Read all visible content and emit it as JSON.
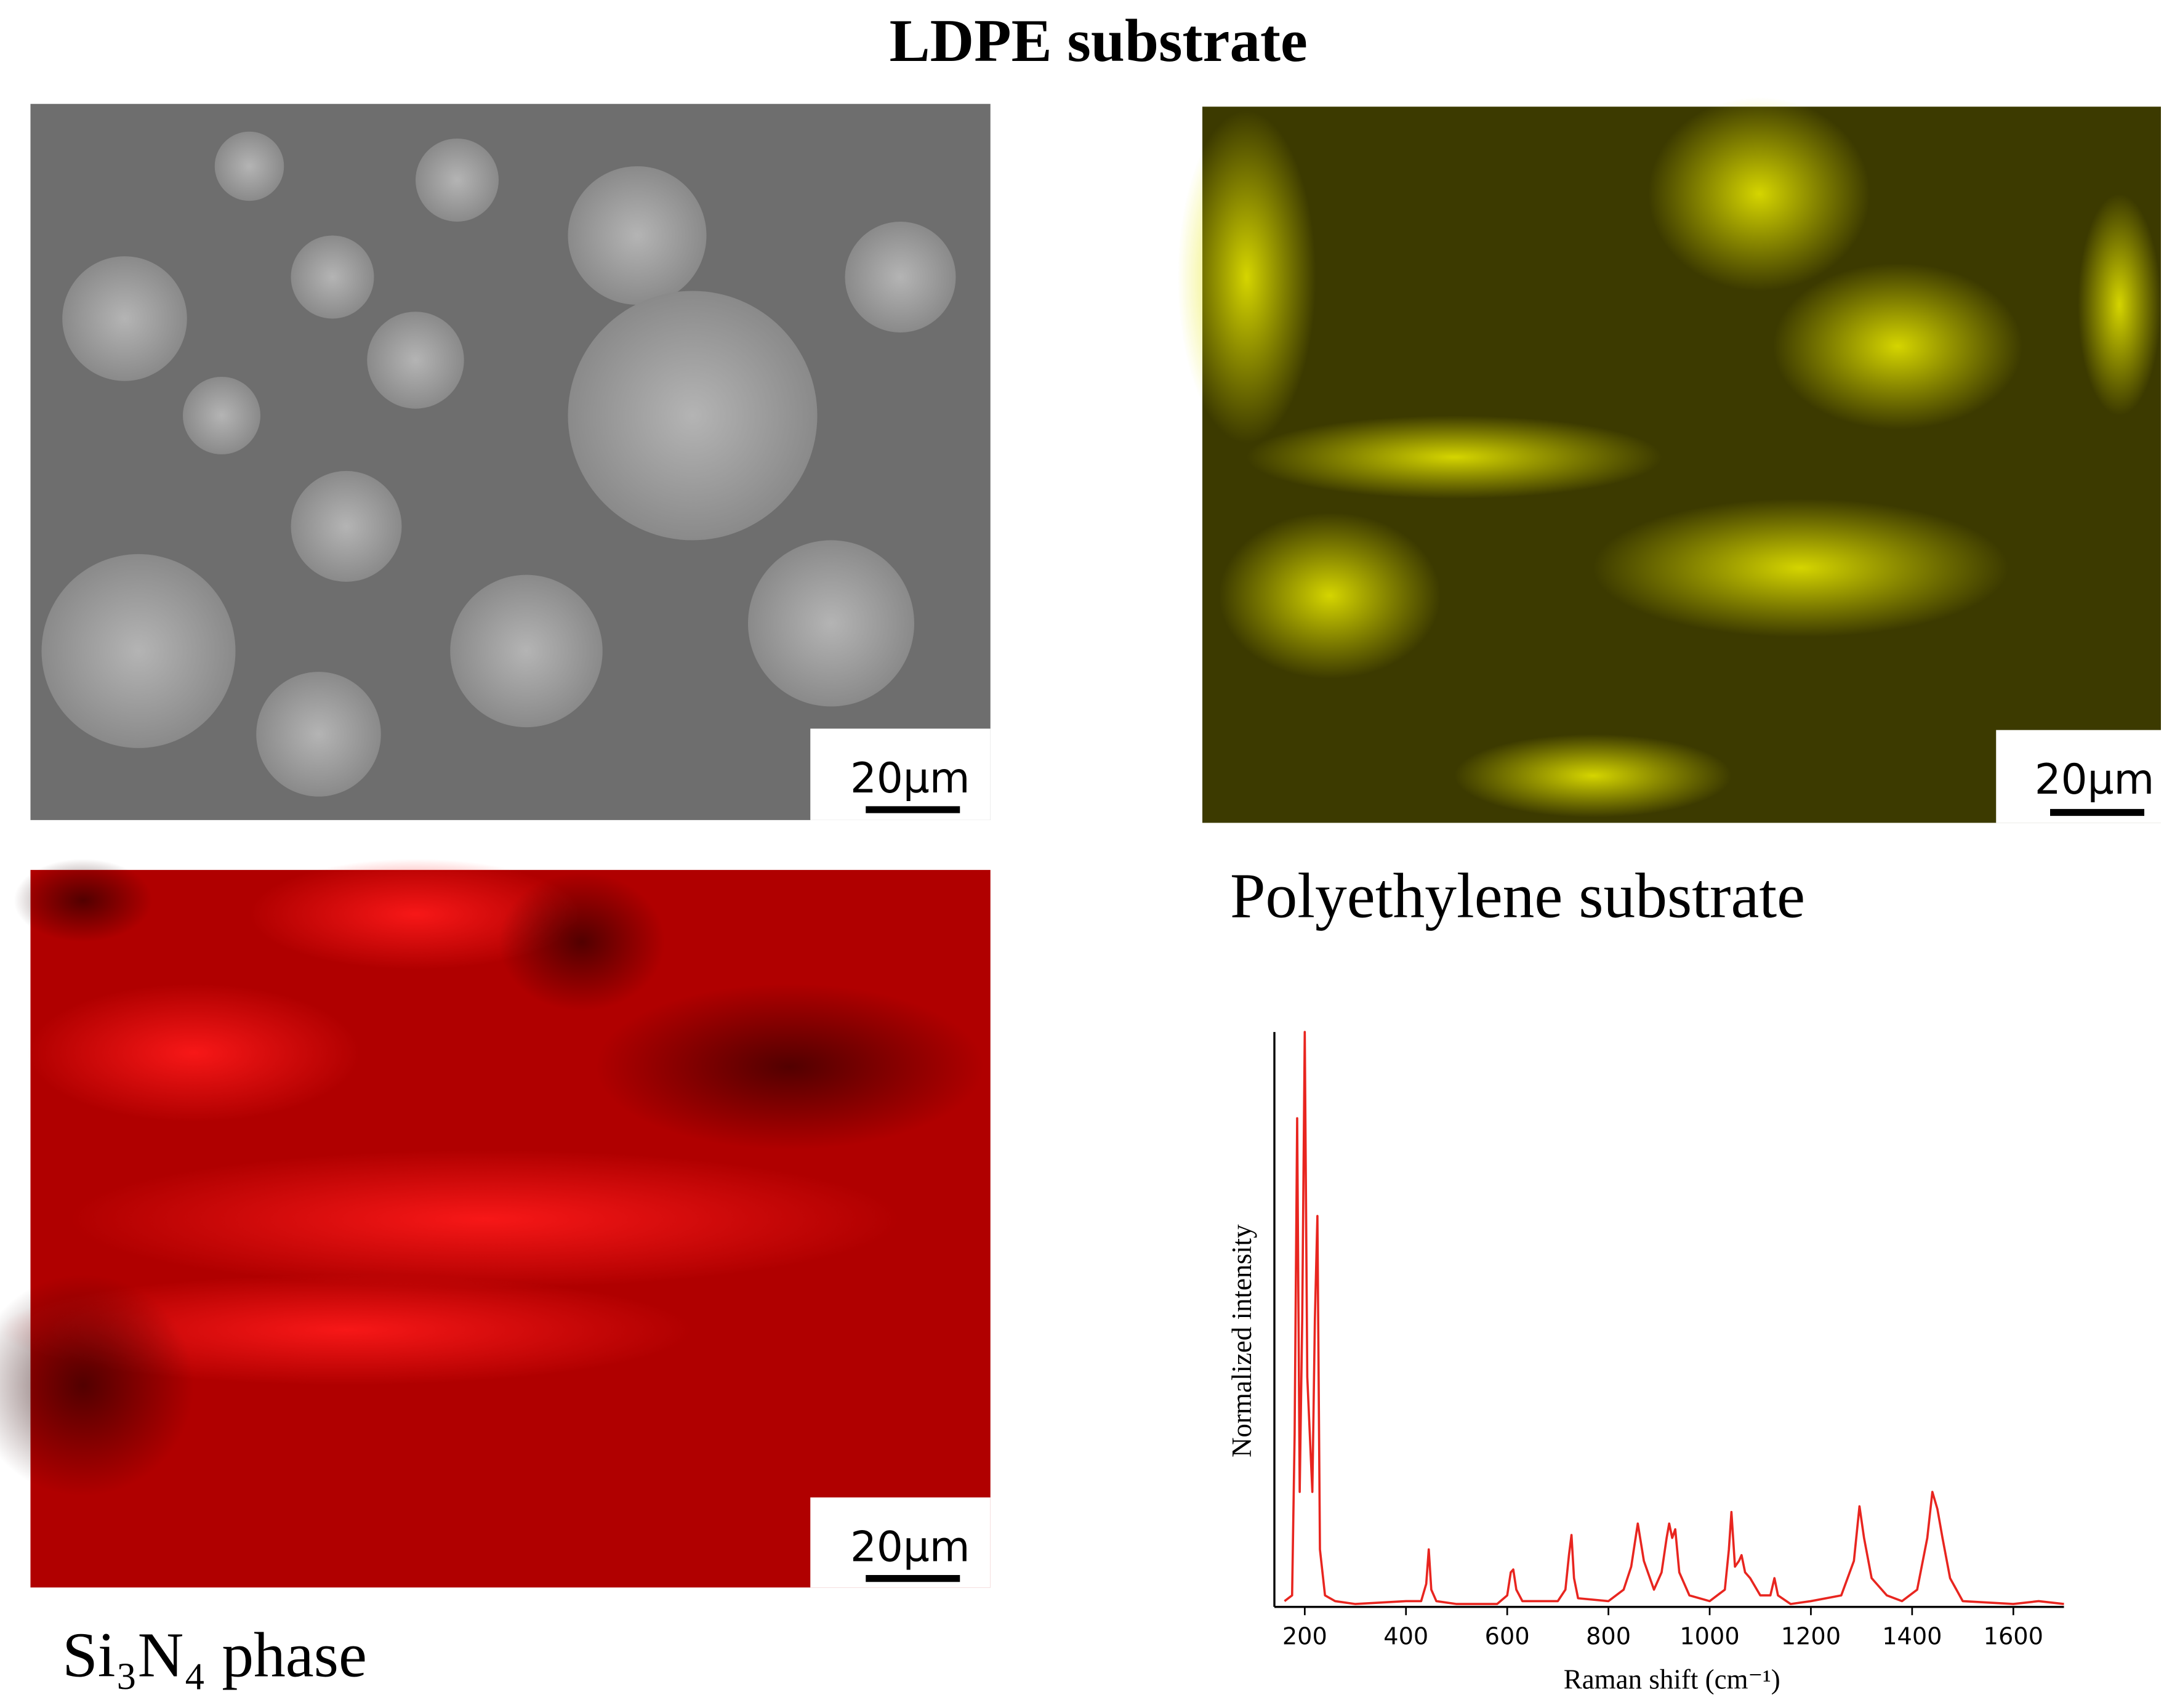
{
  "title": "LDPE substrate",
  "panels": [
    {
      "scale_bar": "20µm"
    },
    {
      "scale_bar": "20µm",
      "label": "Polyethylene substrate"
    },
    {
      "scale_bar": "20µm",
      "label": "Si₃N₄ phase"
    }
  ],
  "chart_data": {
    "type": "line",
    "xlabel": "Raman shift (cm⁻¹)",
    "ylabel": "Normalized intensity",
    "xlim": [
      140,
      1700
    ],
    "ylim": [
      0,
      1
    ],
    "xticks": [
      200,
      400,
      600,
      800,
      1000,
      1200,
      1400,
      1600
    ],
    "series": [
      {
        "color": "#e8251f",
        "x": [
          160,
          175,
          180,
          185,
          190,
          195,
          200,
          205,
          210,
          215,
          220,
          225,
          230,
          240,
          260,
          300,
          400,
          430,
          440,
          445,
          450,
          460,
          500,
          580,
          600,
          607,
          612,
          618,
          630,
          700,
          715,
          722,
          727,
          732,
          740,
          800,
          830,
          845,
          858,
          870,
          890,
          905,
          915,
          920,
          926,
          932,
          940,
          960,
          1000,
          1030,
          1038,
          1043,
          1050,
          1058,
          1063,
          1070,
          1080,
          1100,
          1120,
          1128,
          1135,
          1160,
          1200,
          1260,
          1285,
          1296,
          1305,
          1320,
          1350,
          1380,
          1410,
          1430,
          1440,
          1450,
          1460,
          1475,
          1500,
          1600,
          1650,
          1700
        ],
        "values": [
          0.01,
          0.02,
          0.3,
          0.85,
          0.2,
          0.5,
          1.0,
          0.4,
          0.3,
          0.2,
          0.5,
          0.68,
          0.1,
          0.02,
          0.01,
          0.005,
          0.01,
          0.01,
          0.04,
          0.1,
          0.03,
          0.01,
          0.005,
          0.005,
          0.02,
          0.06,
          0.065,
          0.03,
          0.01,
          0.01,
          0.03,
          0.09,
          0.125,
          0.05,
          0.015,
          0.01,
          0.03,
          0.07,
          0.145,
          0.08,
          0.03,
          0.06,
          0.12,
          0.145,
          0.12,
          0.135,
          0.06,
          0.02,
          0.01,
          0.03,
          0.1,
          0.165,
          0.07,
          0.08,
          0.09,
          0.06,
          0.05,
          0.02,
          0.02,
          0.05,
          0.02,
          0.005,
          0.01,
          0.02,
          0.08,
          0.175,
          0.12,
          0.05,
          0.02,
          0.01,
          0.03,
          0.12,
          0.2,
          0.17,
          0.12,
          0.05,
          0.01,
          0.005,
          0.01,
          0.005
        ]
      }
    ]
  }
}
